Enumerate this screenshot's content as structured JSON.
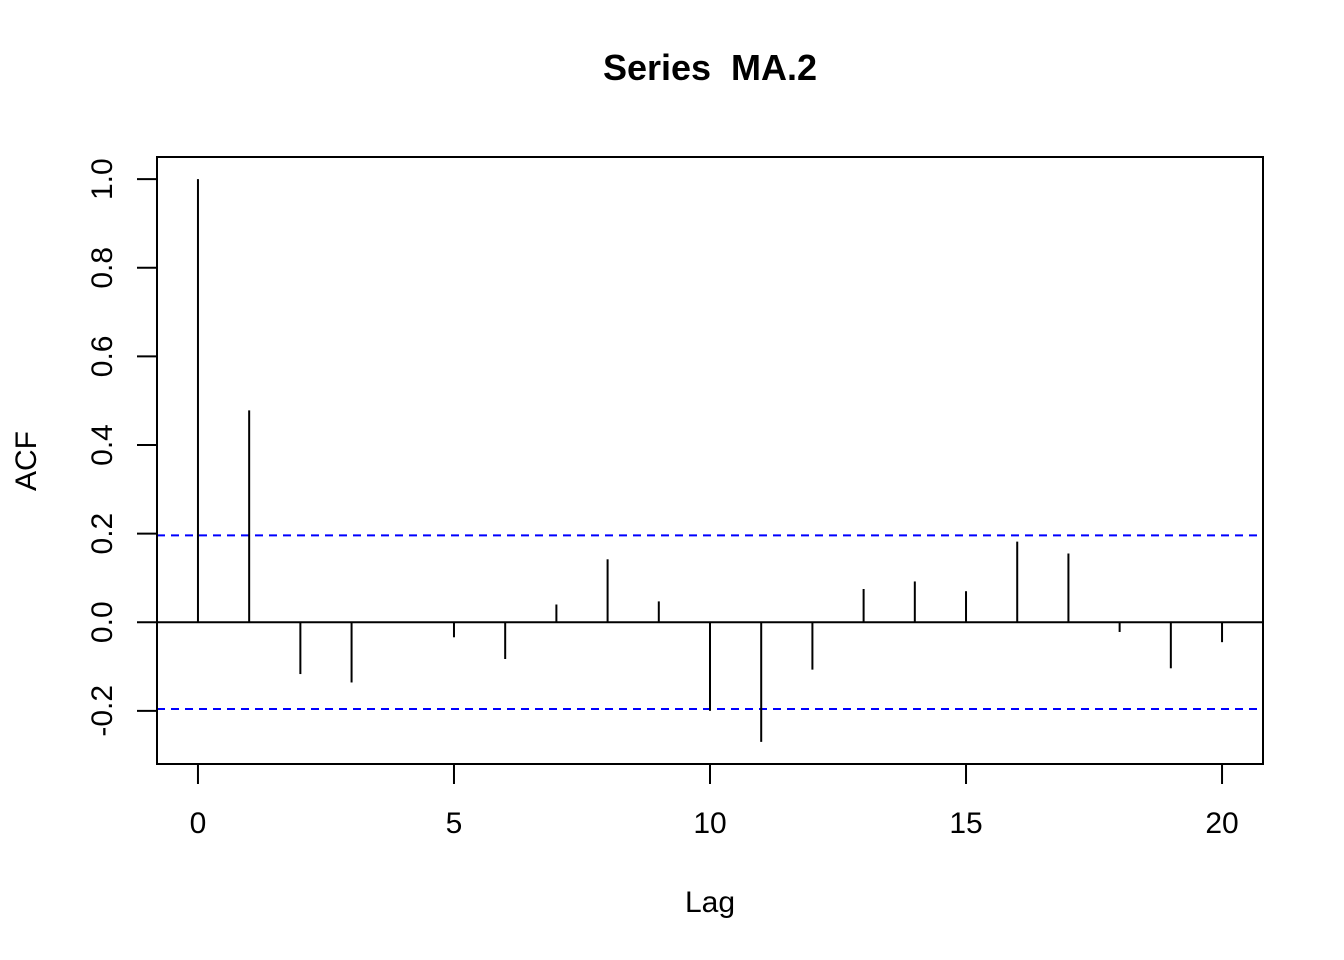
{
  "chart_data": {
    "type": "bar",
    "title": "Series  MA.2",
    "xlabel": "Lag",
    "ylabel": "ACF",
    "xlim": [
      -0.8,
      20.8
    ],
    "ylim": [
      -0.32,
      1.05
    ],
    "x_ticks": [
      0,
      5,
      10,
      15,
      20
    ],
    "x_tick_labels": [
      "0",
      "5",
      "10",
      "15",
      "20"
    ],
    "y_ticks": [
      -0.2,
      0.0,
      0.2,
      0.4,
      0.6,
      0.8,
      1.0
    ],
    "y_tick_labels": [
      "-0.2",
      "0.0",
      "0.2",
      "0.4",
      "0.6",
      "0.8",
      "1.0"
    ],
    "lags": [
      0,
      1,
      2,
      3,
      4,
      5,
      6,
      7,
      8,
      9,
      10,
      11,
      12,
      13,
      14,
      15,
      16,
      17,
      18,
      19,
      20
    ],
    "acf": [
      1.0,
      0.478,
      -0.117,
      -0.136,
      0.0,
      -0.034,
      -0.083,
      0.04,
      0.142,
      0.047,
      -0.2,
      -0.27,
      -0.107,
      0.075,
      0.092,
      0.07,
      0.182,
      0.155,
      -0.022,
      -0.104,
      -0.045
    ],
    "confidence_bound": 0.196,
    "bound_color": "#0000ff",
    "stem_color": "#000000",
    "zero_line": true,
    "grid": false,
    "legend": "none"
  }
}
